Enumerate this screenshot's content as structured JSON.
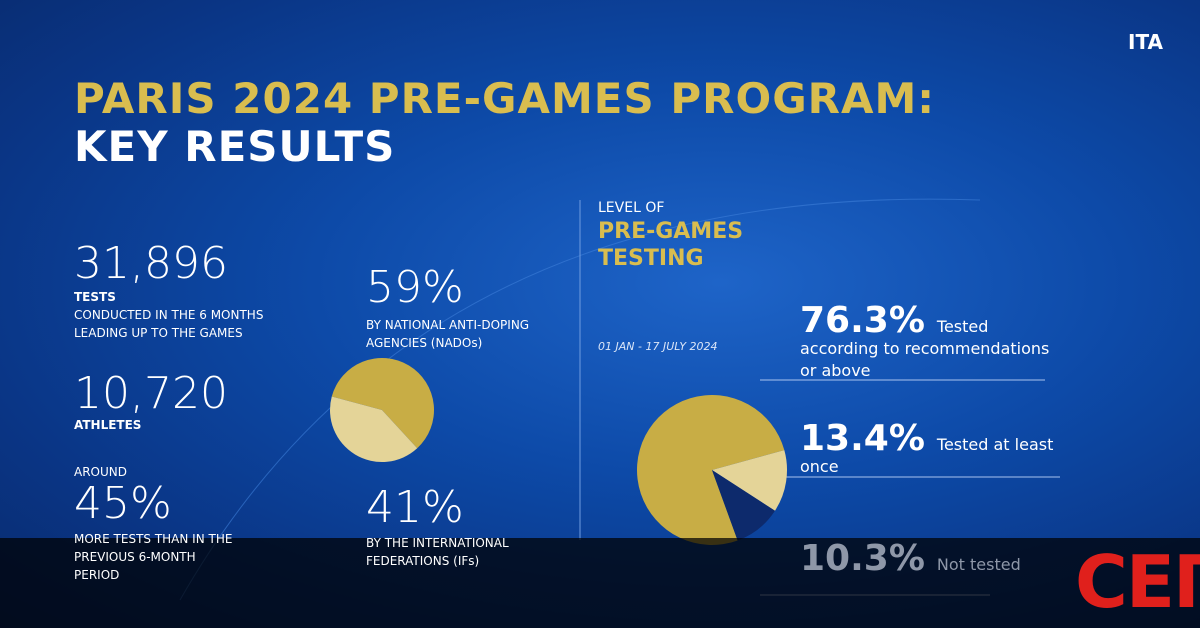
{
  "logo": "ITA",
  "title_line1": "PARIS 2024 PRE-GAMES PROGRAM:",
  "title_line2": "KEY RESULTS",
  "stats": [
    {
      "value": "31,896",
      "label": "TESTS",
      "desc": "CONDUCTED IN THE 6 MONTHS LEADING UP TO THE GAMES"
    },
    {
      "value": "10,720",
      "label": "ATHLETES"
    },
    {
      "prefix": "AROUND",
      "value": "45%",
      "desc": "MORE TESTS THAN IN THE PREVIOUS 6-MONTH PERIOD"
    }
  ],
  "watermark": "СЕГА",
  "chart_data": [
    {
      "type": "pie",
      "categories": [
        "BY NATIONAL ANTI-DOPING AGENCIES (NADOs)",
        "BY THE INTERNATIONAL FEDERATIONS (IFs)"
      ],
      "values": [
        59,
        41
      ],
      "value_labels": [
        "59%",
        "41%"
      ],
      "colors": [
        "#c8ad45",
        "#e4d498"
      ]
    },
    {
      "type": "pie",
      "title": "LEVEL OF",
      "subtitle": "PRE-GAMES TESTING",
      "date": "01 JAN - 17 JULY 2024",
      "categories": [
        "Tested according to recommendations or above",
        "Tested at least once",
        "Not tested"
      ],
      "values": [
        76.3,
        13.4,
        10.3
      ],
      "value_labels": [
        "76.3%",
        "13.4%",
        "10.3%"
      ],
      "colors": [
        "#c8ad45",
        "#e4d498",
        "#0d2a6c"
      ]
    }
  ]
}
